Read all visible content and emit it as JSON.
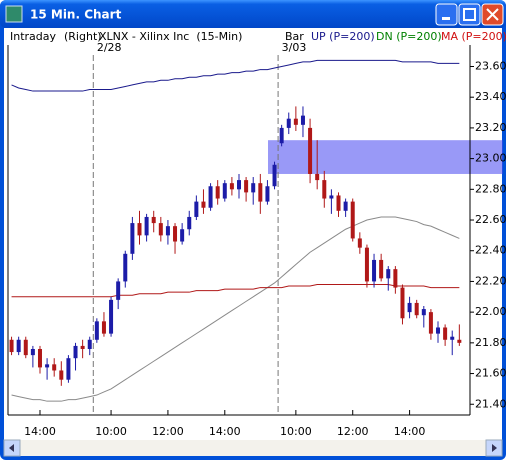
{
  "window": {
    "title": "15 Min. Chart"
  },
  "chart_data": {
    "type": "candlestick",
    "header": {
      "mode": "Intraday",
      "side": "(Right)",
      "symbol": "XLNX - Xilinx Inc  (15-Min)",
      "style": "Bar"
    },
    "sessions": [
      {
        "value": 12,
        "label": "2/28"
      },
      {
        "value": 38,
        "label": "3/03"
      }
    ],
    "xlim": [
      -0.5,
      64.5
    ],
    "xticks": [
      {
        "value": 4,
        "label": "14:00"
      },
      {
        "value": 14,
        "label": "10:00"
      },
      {
        "value": 22,
        "label": "12:00"
      },
      {
        "value": 30,
        "label": "14:00"
      },
      {
        "value": 40,
        "label": "10:00"
      },
      {
        "value": 48,
        "label": "12:00"
      },
      {
        "value": 56,
        "label": "14:00"
      }
    ],
    "ylim": [
      21.33,
      23.74
    ],
    "yticks": [
      {
        "value": 21.4,
        "label": "21.40"
      },
      {
        "value": 21.6,
        "label": "21.60"
      },
      {
        "value": 21.8,
        "label": "21.80"
      },
      {
        "value": 22.0,
        "label": "22.00"
      },
      {
        "value": 22.2,
        "label": "22.20"
      },
      {
        "value": 22.4,
        "label": "22.40"
      },
      {
        "value": 22.6,
        "label": "22.60"
      },
      {
        "value": 22.8,
        "label": "22.80"
      },
      {
        "value": 23.0,
        "label": "23.00"
      },
      {
        "value": 23.2,
        "label": "23.20"
      },
      {
        "value": 23.4,
        "label": "23.40"
      },
      {
        "value": 23.6,
        "label": "23.60"
      }
    ],
    "highlight": [
      22.9,
      23.12
    ],
    "up_color": "#1c1ca8",
    "down_color": "#b01818",
    "candles": {
      "open": [
        21.82,
        21.74,
        21.82,
        21.72,
        21.76,
        21.64,
        21.66,
        21.62,
        21.56,
        21.7,
        21.78,
        21.76,
        21.82,
        21.94,
        21.86,
        22.08,
        22.2,
        22.38,
        22.58,
        22.5,
        22.62,
        22.58,
        22.5,
        22.56,
        22.46,
        22.54,
        22.62,
        22.72,
        22.68,
        22.82,
        22.74,
        22.84,
        22.8,
        22.86,
        22.78,
        22.84,
        22.72,
        22.82,
        23.1,
        23.2,
        23.26,
        23.22,
        23.2,
        22.9,
        22.86,
        22.74,
        22.76,
        22.66,
        22.72,
        22.48,
        22.42,
        22.2,
        22.34,
        22.22,
        22.28,
        22.16,
        22.0,
        22.06,
        21.98,
        22.0,
        21.86,
        21.9,
        21.82,
        21.82
      ],
      "high": [
        21.84,
        21.84,
        21.84,
        21.78,
        21.78,
        21.7,
        21.7,
        21.68,
        21.72,
        21.8,
        21.82,
        21.84,
        21.96,
        22.0,
        22.1,
        22.22,
        22.4,
        22.62,
        22.66,
        22.64,
        22.66,
        22.62,
        22.6,
        22.58,
        22.58,
        22.66,
        22.76,
        22.8,
        22.84,
        22.86,
        22.86,
        22.88,
        22.9,
        22.88,
        22.88,
        22.9,
        22.86,
        22.98,
        23.22,
        23.3,
        23.34,
        23.34,
        23.26,
        23.12,
        22.92,
        22.8,
        22.78,
        22.74,
        22.74,
        22.52,
        22.44,
        22.38,
        22.38,
        22.3,
        22.3,
        22.18,
        22.1,
        22.08,
        22.04,
        22.02,
        21.94,
        21.92,
        21.88,
        21.92
      ],
      "low": [
        21.72,
        21.72,
        21.7,
        21.64,
        21.6,
        21.56,
        21.58,
        21.52,
        21.54,
        21.62,
        21.7,
        21.72,
        21.8,
        21.84,
        21.84,
        22.02,
        22.16,
        22.34,
        22.44,
        22.46,
        22.52,
        22.46,
        22.44,
        22.38,
        22.44,
        22.5,
        22.6,
        22.64,
        22.66,
        22.7,
        22.72,
        22.76,
        22.74,
        22.72,
        22.7,
        22.64,
        22.7,
        22.8,
        23.08,
        23.16,
        23.18,
        23.14,
        22.84,
        22.8,
        22.68,
        22.64,
        22.62,
        22.62,
        22.46,
        22.38,
        22.16,
        22.16,
        22.2,
        22.14,
        22.12,
        21.92,
        21.96,
        21.96,
        21.9,
        21.82,
        21.8,
        21.78,
        21.72,
        21.78
      ],
      "close": [
        21.74,
        21.82,
        21.72,
        21.76,
        21.64,
        21.66,
        21.62,
        21.56,
        21.7,
        21.78,
        21.76,
        21.82,
        21.94,
        21.86,
        22.08,
        22.2,
        22.38,
        22.58,
        22.5,
        22.62,
        22.58,
        22.5,
        22.56,
        22.46,
        22.54,
        22.62,
        22.72,
        22.68,
        22.82,
        22.74,
        22.84,
        22.8,
        22.86,
        22.78,
        22.84,
        22.72,
        22.82,
        22.96,
        23.2,
        23.26,
        23.22,
        23.28,
        22.9,
        22.86,
        22.74,
        22.76,
        22.66,
        22.72,
        22.48,
        22.42,
        22.2,
        22.34,
        22.22,
        22.28,
        22.16,
        21.96,
        22.06,
        21.98,
        22.02,
        21.86,
        21.9,
        21.82,
        21.84,
        21.8
      ]
    },
    "series": [
      {
        "name": "UP (P=200)",
        "color": "#1a1a8c",
        "label_color": "#1a1a8c",
        "values": [
          23.48,
          23.46,
          23.45,
          23.44,
          23.44,
          23.44,
          23.44,
          23.44,
          23.44,
          23.44,
          23.44,
          23.45,
          23.45,
          23.45,
          23.45,
          23.46,
          23.47,
          23.48,
          23.49,
          23.5,
          23.5,
          23.51,
          23.51,
          23.52,
          23.52,
          23.53,
          23.53,
          23.54,
          23.54,
          23.55,
          23.55,
          23.56,
          23.56,
          23.57,
          23.57,
          23.58,
          23.58,
          23.59,
          23.6,
          23.61,
          23.62,
          23.63,
          23.63,
          23.64,
          23.64,
          23.64,
          23.64,
          23.64,
          23.64,
          23.64,
          23.64,
          23.64,
          23.64,
          23.64,
          23.64,
          23.63,
          23.63,
          23.63,
          23.63,
          23.63,
          23.62,
          23.62,
          23.62,
          23.62
        ]
      },
      {
        "name": "DN (P=200)",
        "color": "#8a8a8a",
        "label_color": "#008000",
        "values": [
          21.46,
          21.45,
          21.44,
          21.43,
          21.43,
          21.42,
          21.42,
          21.42,
          21.43,
          21.43,
          21.44,
          21.45,
          21.46,
          21.48,
          21.5,
          21.53,
          21.56,
          21.59,
          21.62,
          21.65,
          21.68,
          21.71,
          21.74,
          21.77,
          21.8,
          21.83,
          21.86,
          21.89,
          21.92,
          21.95,
          21.98,
          22.01,
          22.04,
          22.07,
          22.1,
          22.13,
          22.16,
          22.19,
          22.23,
          22.27,
          22.31,
          22.35,
          22.39,
          22.42,
          22.45,
          22.48,
          22.51,
          22.54,
          22.56,
          22.58,
          22.6,
          22.61,
          22.62,
          22.62,
          22.62,
          22.61,
          22.6,
          22.59,
          22.57,
          22.56,
          22.54,
          22.52,
          22.5,
          22.48
        ]
      },
      {
        "name": "MA (P=200)",
        "color": "#b01818",
        "label_color": "#d01010",
        "values": [
          22.1,
          22.1,
          22.1,
          22.1,
          22.1,
          22.1,
          22.1,
          22.1,
          22.1,
          22.1,
          22.1,
          22.1,
          22.1,
          22.1,
          22.1,
          22.11,
          22.11,
          22.11,
          22.12,
          22.12,
          22.12,
          22.12,
          22.13,
          22.13,
          22.13,
          22.13,
          22.14,
          22.14,
          22.14,
          22.14,
          22.15,
          22.15,
          22.15,
          22.15,
          22.15,
          22.16,
          22.16,
          22.16,
          22.16,
          22.17,
          22.17,
          22.17,
          22.17,
          22.18,
          22.18,
          22.18,
          22.18,
          22.18,
          22.18,
          22.18,
          22.18,
          22.18,
          22.18,
          22.18,
          22.17,
          22.17,
          22.17,
          22.17,
          22.17,
          22.16,
          22.16,
          22.16,
          22.16,
          22.16
        ]
      }
    ]
  }
}
